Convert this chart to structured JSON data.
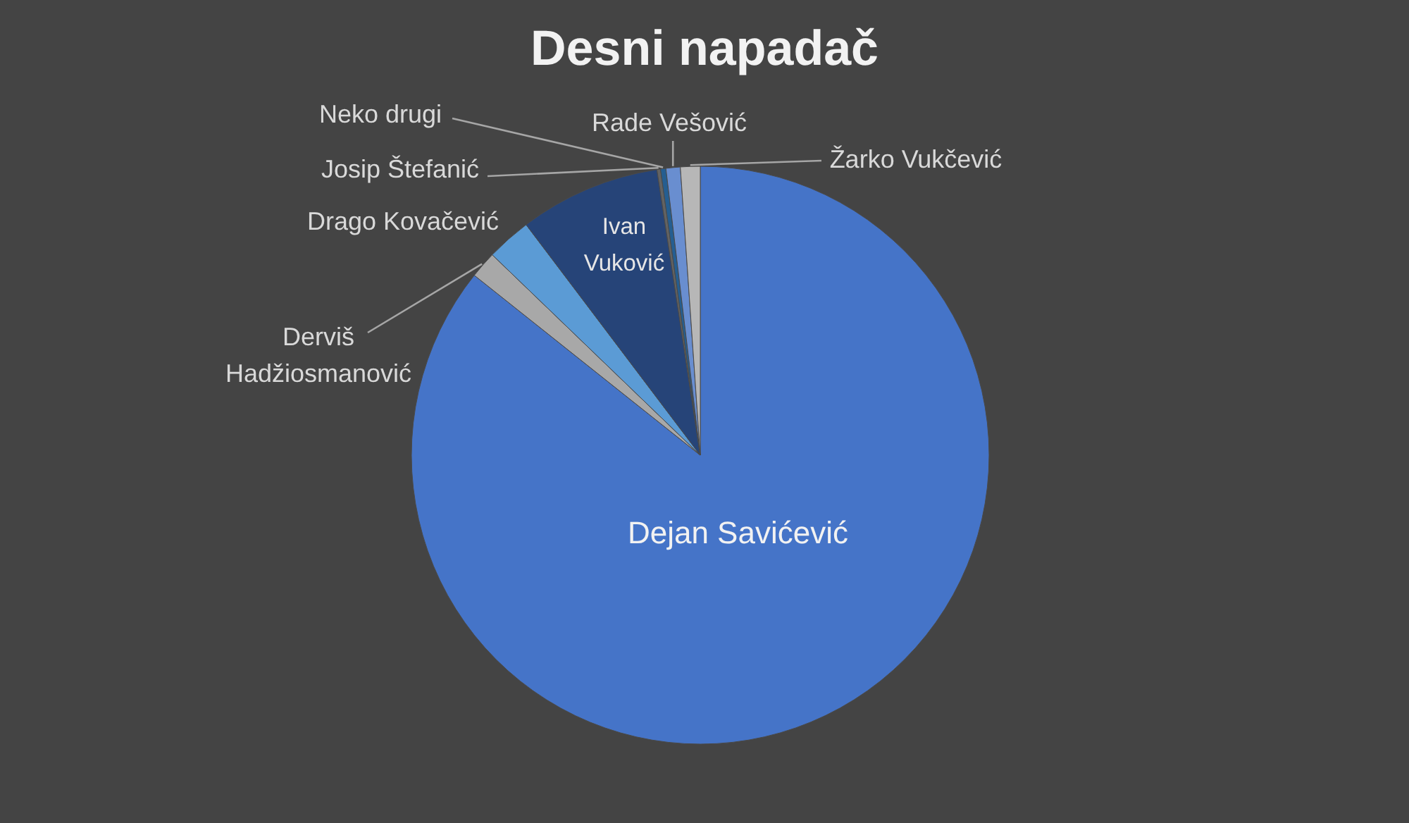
{
  "chart_data": {
    "type": "pie",
    "title": "Desni napadač",
    "categories": [
      "Dejan Savićević",
      "Derviš Hadžiosmanović",
      "Drago Kovačević",
      "Ivan Vuković",
      "Josip Štefanić",
      "Neko drugi",
      "Rade Vešović",
      "Žarko Vukčević"
    ],
    "values": [
      85.7,
      1.5,
      2.5,
      7.9,
      0.2,
      0.3,
      0.8,
      1.1
    ],
    "colors": [
      "#4574c8",
      "#a8a8a8",
      "#5b9bd5",
      "#264478",
      "#636363",
      "#255e91",
      "#698ed0",
      "#b7b7b7"
    ]
  }
}
